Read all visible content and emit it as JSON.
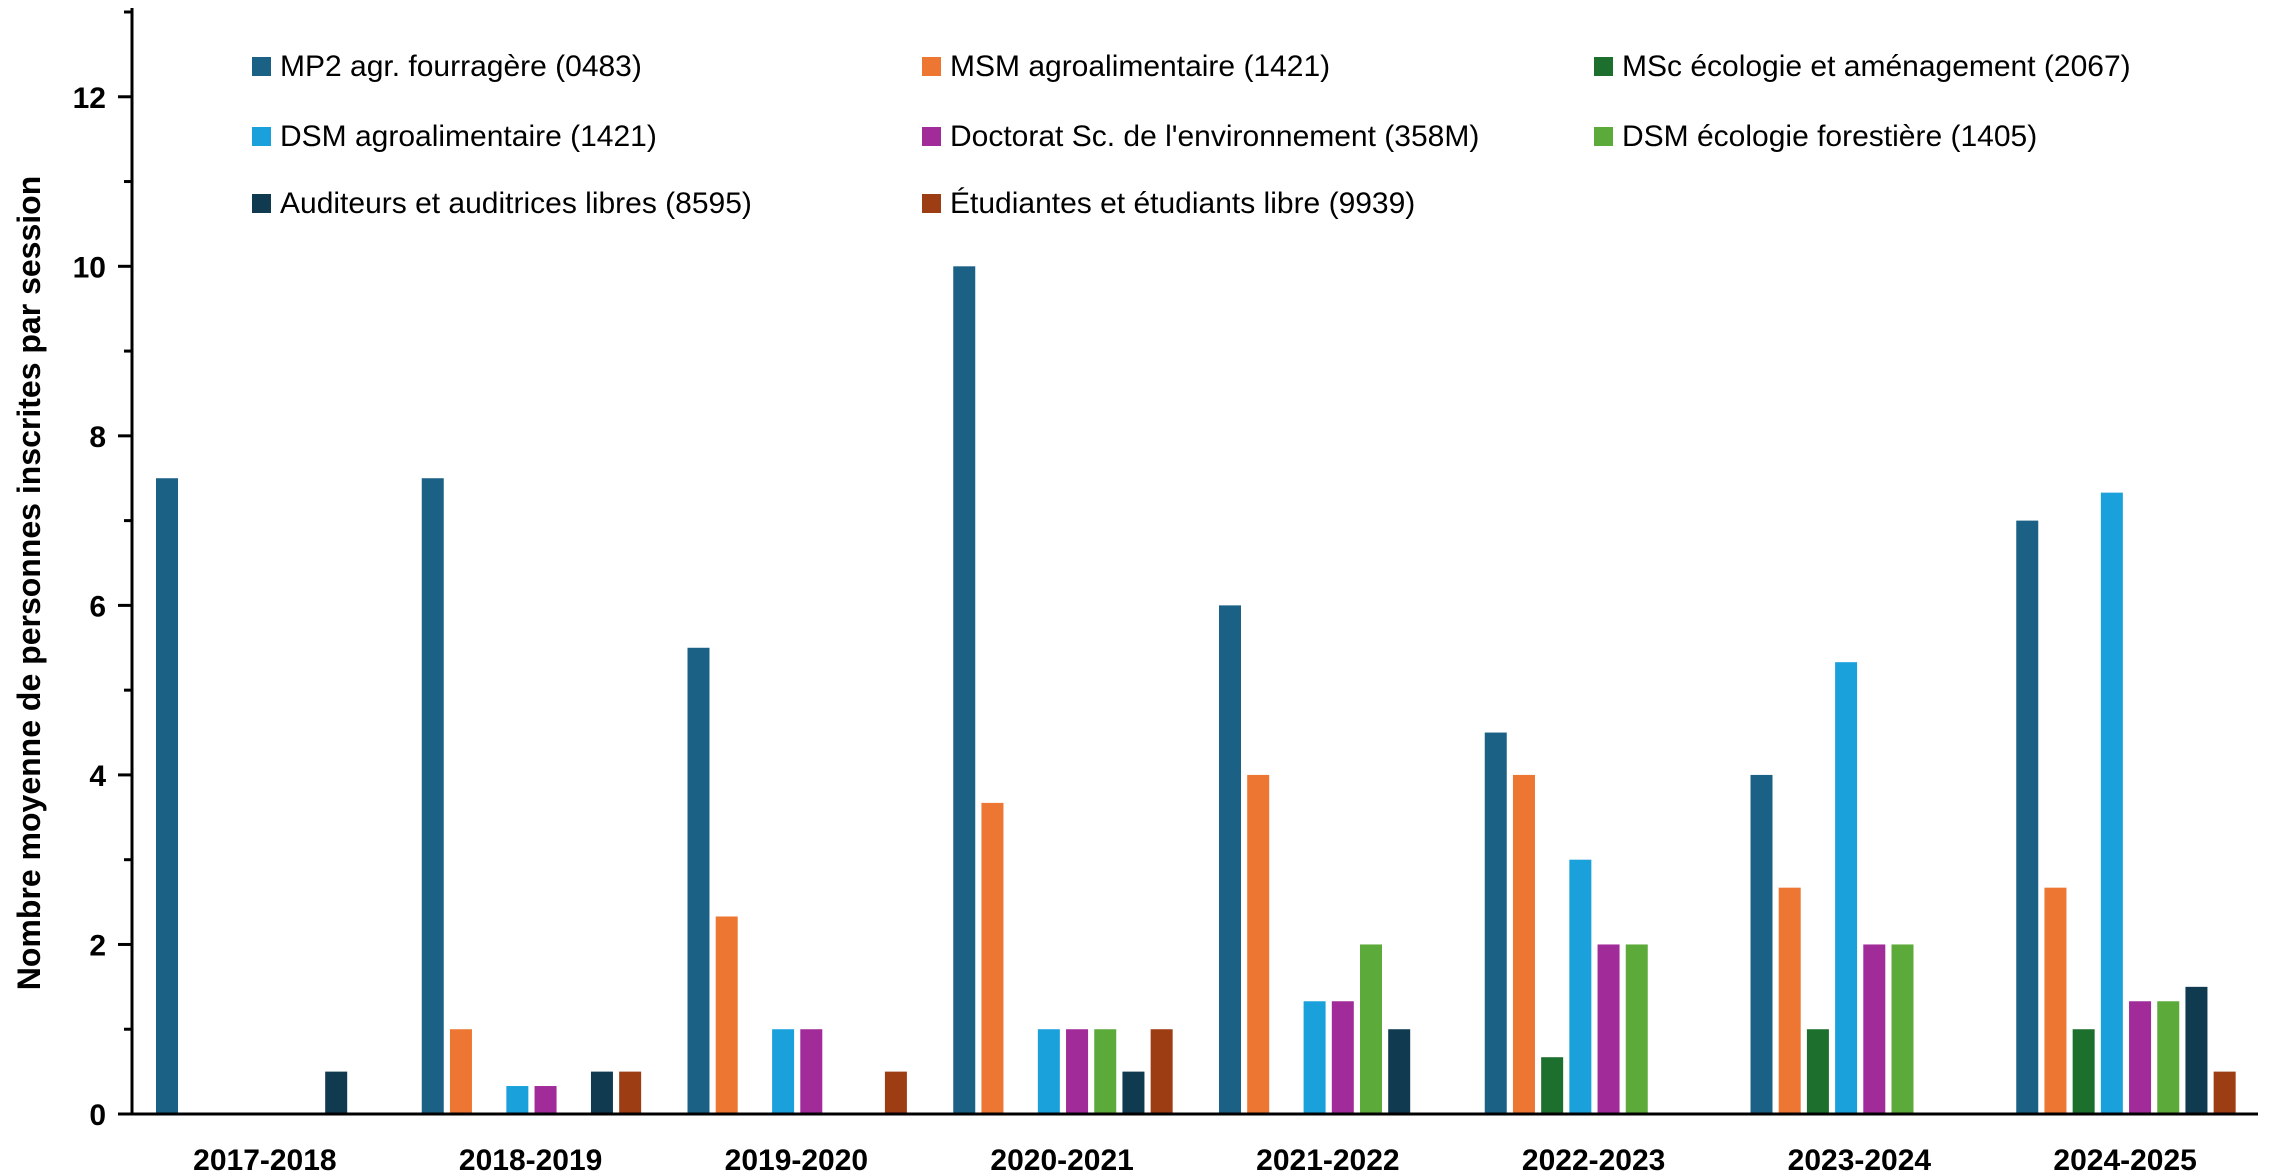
{
  "chart_data": {
    "type": "bar",
    "ylabel": "Nombre moyenne de personnes inscrites par session",
    "xlabel": "",
    "ylim": [
      0,
      13
    ],
    "yticks": [
      0,
      2,
      4,
      6,
      8,
      10,
      12
    ],
    "grid": false,
    "legend_position": "top",
    "categories": [
      "2017-2018",
      "2018-2019",
      "2019-2020",
      "2020-2021",
      "2021-2022",
      "2022-2023",
      "2023-2024",
      "2024-2025"
    ],
    "series": [
      {
        "name": "MP2 agr. fourragère (0483)",
        "color": "#1b6185",
        "values": [
          7.5,
          7.5,
          5.5,
          10,
          6,
          4.5,
          4,
          7
        ]
      },
      {
        "name": "MSM agroalimentaire (1421)",
        "color": "#ec7632",
        "values": [
          0,
          1,
          2.33,
          3.67,
          4,
          4,
          2.67,
          2.67
        ]
      },
      {
        "name": "MSc écologie et aménagement (2067)",
        "color": "#1c6f2c",
        "values": [
          0,
          0,
          0,
          0,
          0,
          0.67,
          1,
          1
        ]
      },
      {
        "name": "DSM agroalimentaire (1421)",
        "color": "#1aa1dc",
        "values": [
          0,
          0.33,
          1,
          1,
          1.33,
          3,
          5.33,
          7.33
        ]
      },
      {
        "name": "Doctorat Sc. de l'environnement (358M)",
        "color": "#a02b99",
        "values": [
          0,
          0.33,
          1,
          1,
          1.33,
          2,
          2,
          1.33
        ]
      },
      {
        "name": "DSM écologie forestière (1405)",
        "color": "#5cab3a",
        "values": [
          0,
          0,
          0,
          1,
          2,
          2,
          2,
          1.33
        ]
      },
      {
        "name": "Auditeurs et auditrices libres (8595)",
        "color": "#0f3a50",
        "values": [
          0.5,
          0.5,
          0,
          0.5,
          1,
          0,
          0,
          1.5
        ]
      },
      {
        "name": "Étudiantes et étudiants libre (9939)",
        "color": "#9d3d14",
        "values": [
          0,
          0.5,
          0.5,
          1,
          0,
          0,
          0,
          0.5
        ]
      }
    ]
  }
}
